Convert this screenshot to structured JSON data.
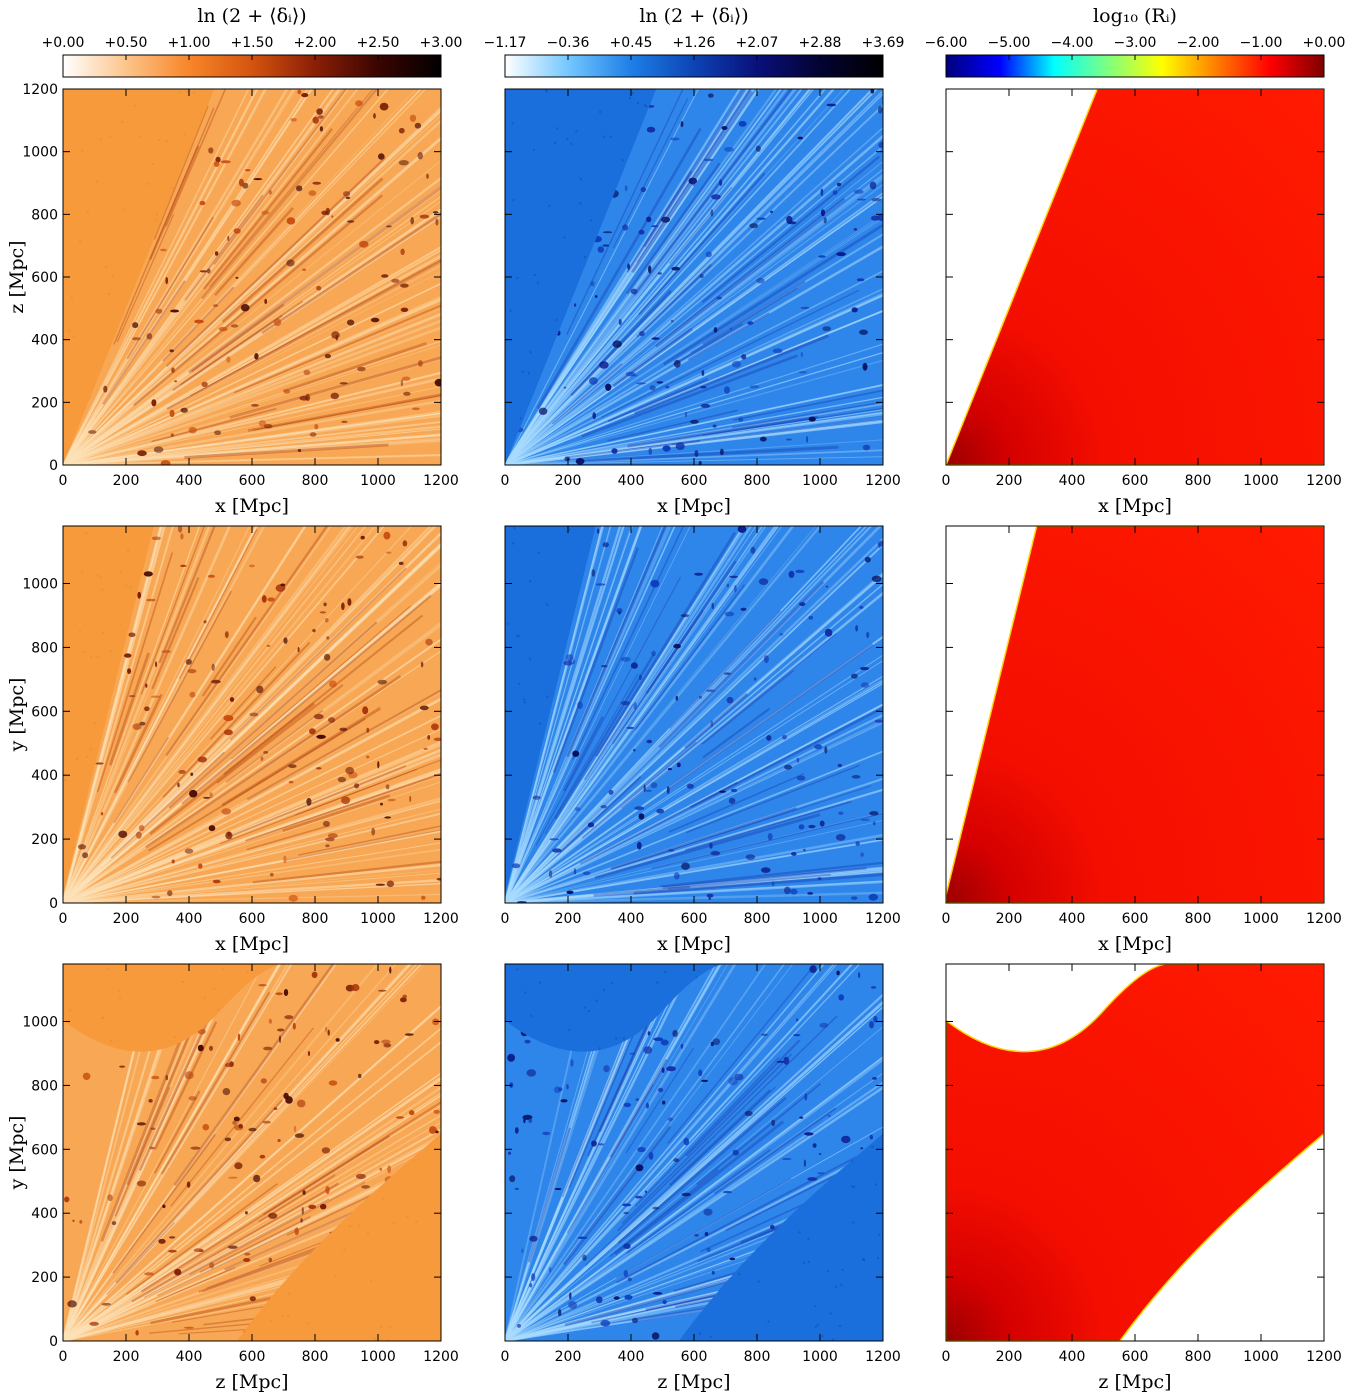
{
  "figure": {
    "colorbars": [
      {
        "title": "ln (2 + ⟨δᵢ⟩)",
        "ticks": [
          "+0.00",
          "+0.50",
          "+1.00",
          "+1.50",
          "+2.00",
          "+2.50",
          "+3.00"
        ],
        "colormap": "orange-hot",
        "colors": [
          "#ffffff",
          "#fdc48a",
          "#f8862a",
          "#d4540f",
          "#8a1f06",
          "#3a0501",
          "#000000"
        ]
      },
      {
        "title": "ln (2 + ⟨δᵢ⟩)",
        "ticks": [
          "−1.17",
          "−0.36",
          "+0.45",
          "+1.26",
          "+2.07",
          "+2.88",
          "+3.69"
        ],
        "colormap": "blue",
        "colors": [
          "#ffffff",
          "#74c7ff",
          "#1e7fe6",
          "#0d44b4",
          "#09107a",
          "#030333",
          "#000000"
        ]
      },
      {
        "title": "log₁₀ (Rᵢ)",
        "ticks": [
          "−6.00",
          "−5.00",
          "−4.00",
          "−3.00",
          "−2.00",
          "−1.00",
          "+0.00"
        ],
        "colormap": "jet",
        "colors": [
          "#00007f",
          "#0000ff",
          "#00ffff",
          "#7fff7f",
          "#ffff00",
          "#ff7f00",
          "#ff0000",
          "#7f0000"
        ]
      }
    ],
    "panels": [
      {
        "id": "r1c1",
        "row": 1,
        "col": 1,
        "ylabel": "z [Mpc]",
        "xlabel": "x [Mpc]",
        "kind": "delta-orange",
        "geometry": "wedge-60"
      },
      {
        "id": "r1c2",
        "row": 1,
        "col": 2,
        "ylabel": "",
        "xlabel": "x [Mpc]",
        "kind": "delta-blue",
        "geometry": "wedge-60"
      },
      {
        "id": "r1c3",
        "row": 1,
        "col": 3,
        "ylabel": "",
        "xlabel": "x [Mpc]",
        "kind": "mask",
        "geometry": "wedge-60"
      },
      {
        "id": "r2c1",
        "row": 2,
        "col": 1,
        "ylabel": "y [Mpc]",
        "xlabel": "x [Mpc]",
        "kind": "delta-orange",
        "geometry": "wedge-70"
      },
      {
        "id": "r2c2",
        "row": 2,
        "col": 2,
        "ylabel": "",
        "xlabel": "x [Mpc]",
        "kind": "delta-blue",
        "geometry": "wedge-70"
      },
      {
        "id": "r2c3",
        "row": 2,
        "col": 3,
        "ylabel": "",
        "xlabel": "x [Mpc]",
        "kind": "mask",
        "geometry": "wedge-70"
      },
      {
        "id": "r3c1",
        "row": 3,
        "col": 1,
        "ylabel": "y [Mpc]",
        "xlabel": "z [Mpc]",
        "kind": "delta-orange",
        "geometry": "band"
      },
      {
        "id": "r3c2",
        "row": 3,
        "col": 2,
        "ylabel": "",
        "xlabel": "z [Mpc]",
        "kind": "delta-blue",
        "geometry": "band"
      },
      {
        "id": "r3c3",
        "row": 3,
        "col": 3,
        "ylabel": "",
        "xlabel": "z [Mpc]",
        "kind": "mask",
        "geometry": "band"
      }
    ],
    "xticks": [
      "0",
      "200",
      "400",
      "600",
      "800",
      "1000",
      "1200"
    ],
    "yticks_row1": [
      "0",
      "200",
      "400",
      "600",
      "800",
      "1000",
      "1200"
    ],
    "yticks_row23": [
      "0",
      "200",
      "400",
      "600",
      "800",
      "1000"
    ]
  },
  "chart_data": [
    {
      "type": "heatmap",
      "title": "ln (2 + ⟨δᵢ⟩)",
      "xlabel": "x [Mpc]",
      "ylabel": "z [Mpc]",
      "xlim": [
        0,
        1200
      ],
      "ylim": [
        0,
        1200
      ]
    },
    {
      "type": "heatmap",
      "title": "ln (2 + ⟨δᵢ⟩)",
      "xlabel": "x [Mpc]",
      "ylabel": "",
      "xlim": [
        0,
        1200
      ],
      "ylim": [
        0,
        1200
      ]
    },
    {
      "type": "heatmap",
      "title": "log₁₀ (Rᵢ)",
      "xlabel": "x [Mpc]",
      "ylabel": "",
      "xlim": [
        0,
        1200
      ],
      "ylim": [
        0,
        1200
      ]
    },
    {
      "type": "heatmap",
      "xlabel": "x [Mpc]",
      "ylabel": "y [Mpc]",
      "xlim": [
        0,
        1200
      ],
      "ylim": [
        0,
        1200
      ]
    },
    {
      "type": "heatmap",
      "xlabel": "x [Mpc]",
      "ylabel": "",
      "xlim": [
        0,
        1200
      ],
      "ylim": [
        0,
        1200
      ]
    },
    {
      "type": "heatmap",
      "xlabel": "x [Mpc]",
      "ylabel": "",
      "xlim": [
        0,
        1200
      ],
      "ylim": [
        0,
        1200
      ]
    },
    {
      "type": "heatmap",
      "xlabel": "z [Mpc]",
      "ylabel": "y [Mpc]",
      "xlim": [
        0,
        1200
      ],
      "ylim": [
        0,
        1200
      ]
    },
    {
      "type": "heatmap",
      "xlabel": "z [Mpc]",
      "ylabel": "",
      "xlim": [
        0,
        1200
      ],
      "ylim": [
        0,
        1200
      ]
    },
    {
      "type": "heatmap",
      "xlabel": "z [Mpc]",
      "ylabel": "",
      "xlim": [
        0,
        1200
      ],
      "ylim": [
        0,
        1200
      ]
    }
  ]
}
